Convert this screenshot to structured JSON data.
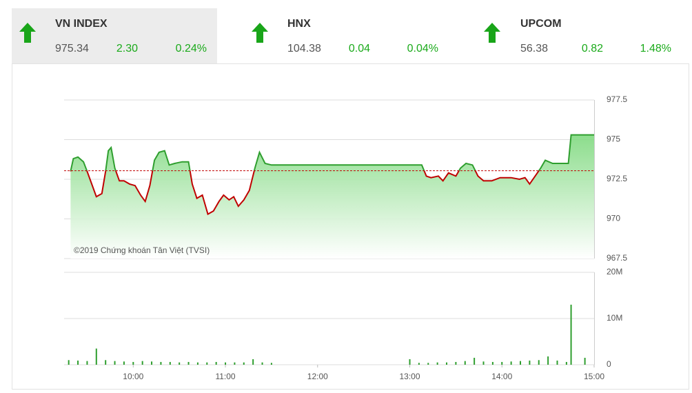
{
  "indices": [
    {
      "name": "VN INDEX",
      "value": "975.34",
      "change": "2.30",
      "pct": "0.24%"
    },
    {
      "name": "HNX",
      "value": "104.38",
      "change": "0.04",
      "pct": "0.04%"
    },
    {
      "name": "UPCOM",
      "value": "56.38",
      "change": "0.82",
      "pct": "1.48%"
    }
  ],
  "watermark": "©2019 Chứng khoán Tân Việt (TVSI)",
  "chart_data": [
    {
      "type": "area",
      "color": "#2e9e2e",
      "down_color": "#c00000",
      "reference": 973.04,
      "xlim": [
        9.25,
        15.0
      ],
      "ylim": [
        967.5,
        977.5
      ],
      "yticks": [
        967.5,
        970,
        972.5,
        975,
        977.5
      ],
      "grid": true,
      "x": [
        9.32,
        9.35,
        9.4,
        9.46,
        9.5,
        9.55,
        9.6,
        9.66,
        9.7,
        9.73,
        9.76,
        9.8,
        9.85,
        9.9,
        9.96,
        10.02,
        10.08,
        10.13,
        10.18,
        10.23,
        10.28,
        10.34,
        10.39,
        10.45,
        10.53,
        10.6,
        10.64,
        10.69,
        10.75,
        10.81,
        10.87,
        10.93,
        10.98,
        11.04,
        11.09,
        11.14,
        11.2,
        11.26,
        11.32,
        11.37,
        11.43,
        11.5,
        13.0,
        13.04,
        13.13,
        13.18,
        13.23,
        13.31,
        13.36,
        13.42,
        13.5,
        13.55,
        13.61,
        13.68,
        13.74,
        13.8,
        13.89,
        13.98,
        14.1,
        14.19,
        14.25,
        14.3,
        14.36,
        14.42,
        14.47,
        14.55,
        14.72,
        14.75,
        15.0
      ],
      "values": [
        973.0,
        973.8,
        973.9,
        973.6,
        973.0,
        972.2,
        971.4,
        971.6,
        973.0,
        974.3,
        974.5,
        973.2,
        972.4,
        972.4,
        972.2,
        972.1,
        971.5,
        971.1,
        972.1,
        973.7,
        974.2,
        974.3,
        973.4,
        973.5,
        973.6,
        973.6,
        972.2,
        971.3,
        971.5,
        970.3,
        970.5,
        971.1,
        971.5,
        971.2,
        971.4,
        970.8,
        971.2,
        971.8,
        973.2,
        974.2,
        973.5,
        973.4,
        973.4,
        973.4,
        973.4,
        972.7,
        972.6,
        972.7,
        972.4,
        972.9,
        972.7,
        973.2,
        973.5,
        973.4,
        972.7,
        972.4,
        972.4,
        972.6,
        972.6,
        972.5,
        972.6,
        972.2,
        972.7,
        973.2,
        973.7,
        973.5,
        973.5,
        975.3,
        975.3
      ]
    },
    {
      "type": "bar",
      "color": "#2e9e2e",
      "xlim": [
        9.25,
        15.0
      ],
      "ylim": [
        0,
        20000000
      ],
      "yticks": [
        0,
        {
          "value": 10000000,
          "label": "10M"
        },
        {
          "value": 20000000,
          "label": "20M"
        }
      ],
      "grid": true,
      "xticks": [
        {
          "value": 10,
          "label": "10:00"
        },
        {
          "value": 11,
          "label": "11:00"
        },
        {
          "value": 12,
          "label": "12:00"
        },
        {
          "value": 13,
          "label": "13:00"
        },
        {
          "value": 14,
          "label": "14:00"
        },
        {
          "value": 15,
          "label": "15:00"
        }
      ],
      "x": [
        9.3,
        9.4,
        9.5,
        9.6,
        9.7,
        9.8,
        9.9,
        10.0,
        10.1,
        10.2,
        10.3,
        10.4,
        10.5,
        10.6,
        10.7,
        10.8,
        10.9,
        11.0,
        11.1,
        11.2,
        11.3,
        11.4,
        11.5,
        13.0,
        13.1,
        13.2,
        13.3,
        13.4,
        13.5,
        13.6,
        13.7,
        13.8,
        13.9,
        14.0,
        14.1,
        14.2,
        14.3,
        14.4,
        14.5,
        14.6,
        14.7,
        14.75,
        14.9
      ],
      "values": [
        1000000,
        900000,
        800000,
        3500000,
        1000000,
        800000,
        700000,
        600000,
        800000,
        700000,
        600000,
        600000,
        500000,
        600000,
        500000,
        500000,
        600000,
        500000,
        500000,
        500000,
        1200000,
        500000,
        400000,
        1200000,
        400000,
        400000,
        500000,
        500000,
        600000,
        800000,
        1500000,
        700000,
        600000,
        600000,
        700000,
        800000,
        900000,
        1000000,
        1800000,
        900000,
        600000,
        13000000,
        1500000
      ]
    }
  ]
}
